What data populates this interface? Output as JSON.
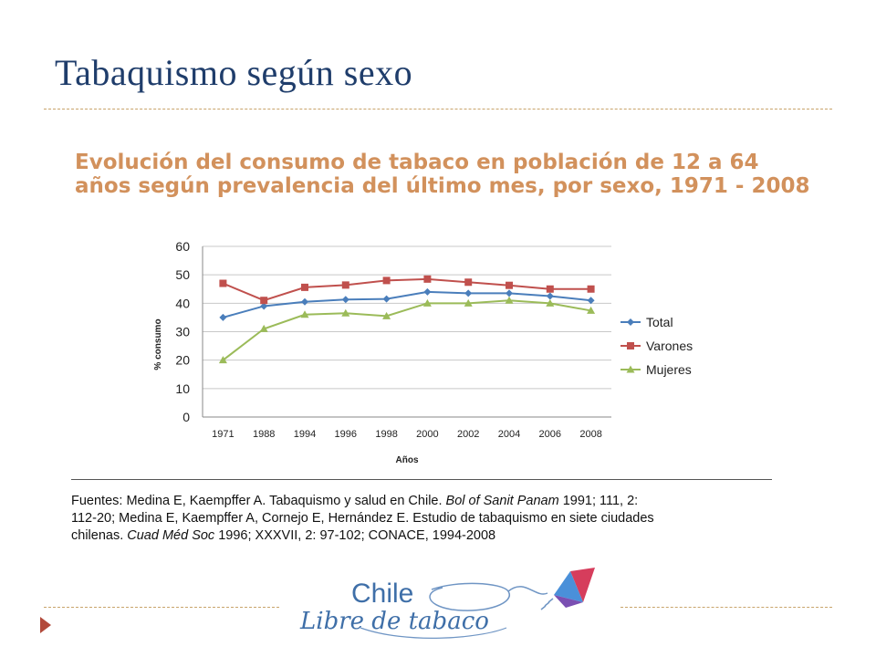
{
  "slide": {
    "title": "Tabaquismo según sexo"
  },
  "chart_data": {
    "type": "line",
    "title_lines": [
      "Evolución del consumo de tabaco en población de 12 a 64",
      "años según prevalencia del último mes, por sexo, 1971 - 2008"
    ],
    "categories": [
      "1971",
      "1988",
      "1994",
      "1996",
      "1998",
      "2000",
      "2002",
      "2004",
      "2006",
      "2008"
    ],
    "xlabel": "Años",
    "ylabel": "% consumo",
    "ylim": [
      0,
      60
    ],
    "yticks": [
      "0",
      "10",
      "20",
      "30",
      "40",
      "50",
      "60"
    ],
    "grid": true,
    "legend_position": "right",
    "series": [
      {
        "name": "Total",
        "color": "#4a7ebb",
        "marker": "diamond",
        "values": [
          35,
          39,
          40.5,
          41.3,
          41.5,
          44,
          43.5,
          43.5,
          42.5,
          41
        ]
      },
      {
        "name": "Varones",
        "color": "#c0504d",
        "marker": "square",
        "values": [
          47,
          41,
          45.6,
          46.4,
          48,
          48.5,
          47.4,
          46.3,
          45,
          45
        ]
      },
      {
        "name": "Mujeres",
        "color": "#9bbb59",
        "marker": "triangle",
        "values": [
          20,
          31,
          36,
          36.5,
          35.5,
          40,
          40,
          41,
          40,
          37.4
        ]
      }
    ]
  },
  "sources": {
    "line1_prefix": "Fuentes: Medina E, Kaempffer A. Tabaquismo y salud en Chile. ",
    "line1_journal": "Bol of Sanit Panam",
    "line1_suffix": " 1991; 111, 2:",
    "line2": "112-20; Medina E, Kaempffer A, Cornejo E, Hernández E. Estudio de tabaquismo en siete ciudades",
    "line3_prefix": "chilenas. ",
    "line3_journal": "Cuad Méd Soc",
    "line3_suffix": " 1996; XXXVII, 2: 97-102; CONACE, 1994-2008"
  },
  "logo": {
    "line1": "Chile",
    "line2": "Libre de tabaco",
    "color": "#3f6fa8"
  }
}
